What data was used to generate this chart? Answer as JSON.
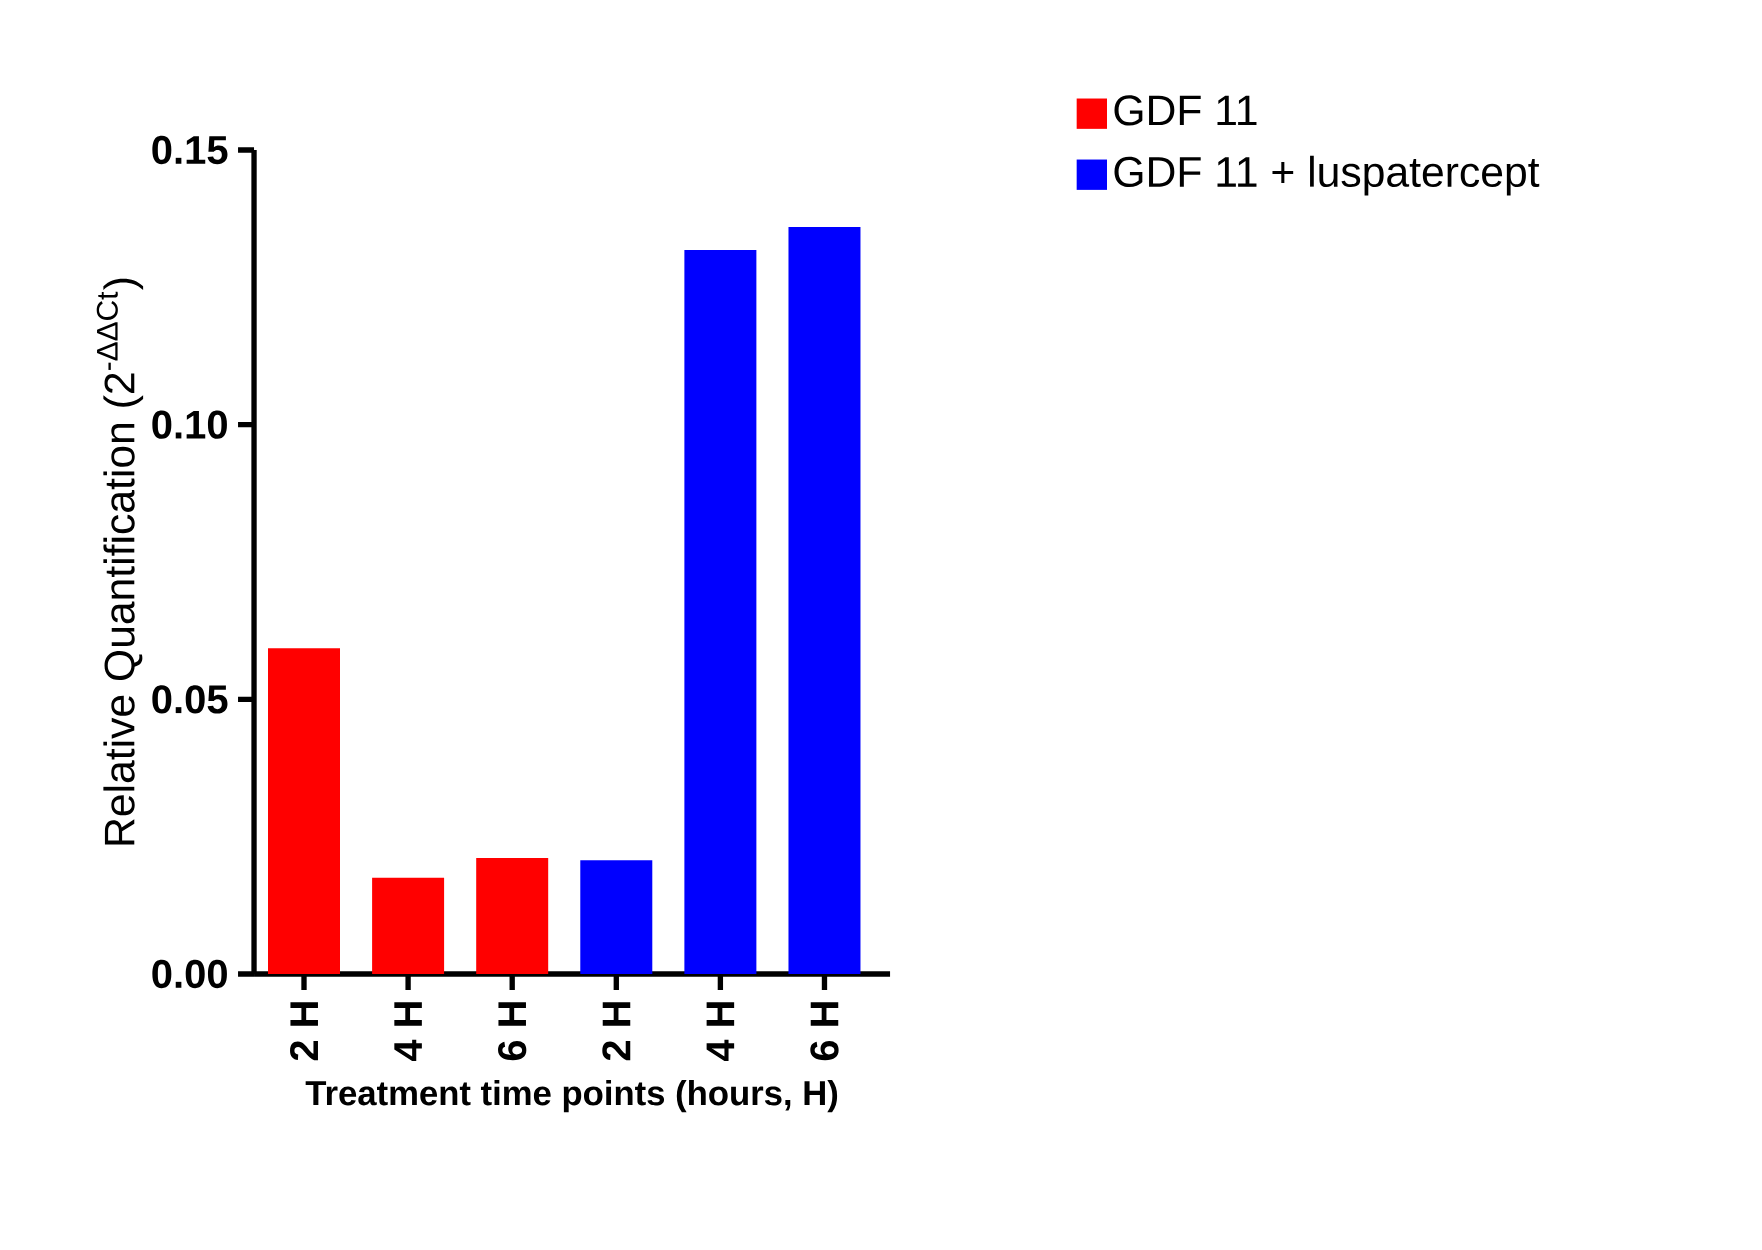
{
  "chart_data": {
    "type": "bar",
    "xlabel": "Treatment time points (hours, H)",
    "ylabel": "Relative Quantification (2$^{-ΔΔCt}$)",
    "categories": [
      "2 H",
      "4 H",
      "6 H",
      "2 H",
      "4 H",
      "6 H"
    ],
    "series": [
      {
        "name": "GDF 11",
        "color": "#ff0000",
        "values": [
          0.0593,
          0.0175,
          0.0211,
          null,
          null,
          null
        ]
      },
      {
        "name": "GDF 11 + luspatercept",
        "color": "#0000ff",
        "values": [
          null,
          null,
          null,
          0.0207,
          0.1318,
          0.136
        ]
      }
    ],
    "ylim": [
      0,
      0.15
    ],
    "yticks": [
      {
        "value": 0,
        "label": "0.00"
      },
      {
        "value": 0.05,
        "label": "0.05"
      },
      {
        "value": 0.1,
        "label": "0.10"
      },
      {
        "value": 0.15,
        "label": "0.15"
      }
    ],
    "legend": "top right",
    "grid": false
  }
}
